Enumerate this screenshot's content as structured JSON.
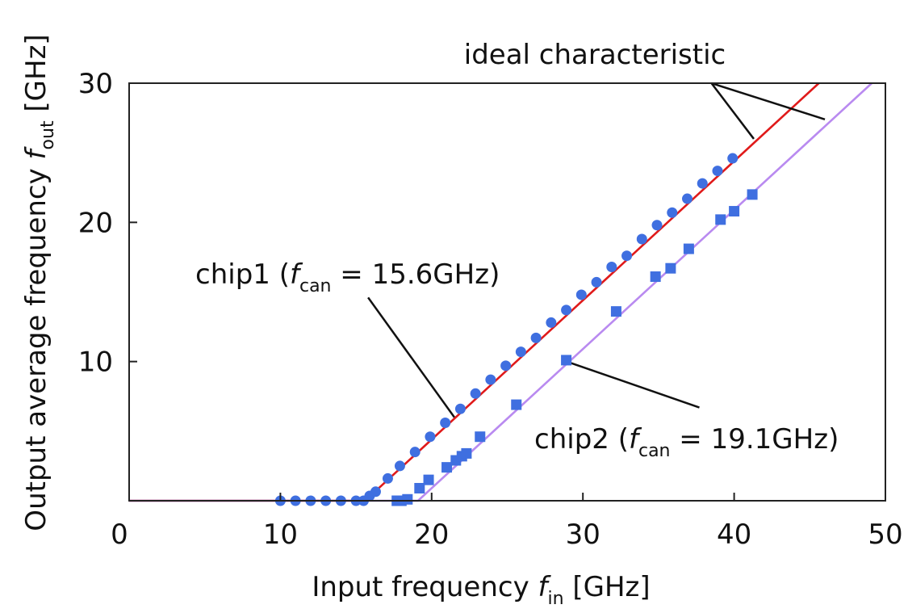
{
  "chart_data": {
    "type": "scatter",
    "title": "",
    "xlabel": {
      "prefix": "Input frequency ",
      "symbol": "f",
      "subscript": "in",
      "suffix": " [GHz]"
    },
    "ylabel": {
      "prefix": "Output average frequency ",
      "symbol": "f",
      "subscript": "out",
      "suffix": " [GHz]"
    },
    "xlim": [
      0,
      50
    ],
    "ylim": [
      0,
      30
    ],
    "xticks": [
      "0",
      "10",
      "20",
      "30",
      "40",
      "50"
    ],
    "yticks": [
      "10",
      "20",
      "30"
    ],
    "grid": false,
    "annotations": {
      "ideal": "ideal characteristic",
      "chip1": {
        "prefix": "chip1 (",
        "symbol": "f",
        "subscript": "can",
        "suffix": " = 15.6GHz)"
      },
      "chip2": {
        "prefix": "chip2 (",
        "symbol": "f",
        "subscript": "can",
        "suffix": " = 19.1GHz)"
      }
    },
    "series": [
      {
        "marker": "circle",
        "color": "#3f6fe0",
        "points": [
          [
            10.0,
            0
          ],
          [
            11.0,
            0
          ],
          [
            12.0,
            0
          ],
          [
            13.0,
            0
          ],
          [
            14.0,
            0
          ],
          [
            15.0,
            0
          ],
          [
            15.5,
            0
          ],
          [
            15.9,
            0.35
          ],
          [
            16.3,
            0.65
          ],
          [
            17.1,
            1.6
          ],
          [
            17.9,
            2.5
          ],
          [
            18.9,
            3.5
          ],
          [
            19.9,
            4.6
          ],
          [
            20.9,
            5.6
          ],
          [
            21.9,
            6.6
          ],
          [
            22.9,
            7.7
          ],
          [
            23.9,
            8.7
          ],
          [
            24.9,
            9.7
          ],
          [
            25.9,
            10.7
          ],
          [
            26.9,
            11.7
          ],
          [
            27.9,
            12.8
          ],
          [
            28.9,
            13.7
          ],
          [
            29.9,
            14.8
          ],
          [
            30.9,
            15.7
          ],
          [
            31.9,
            16.8
          ],
          [
            32.9,
            17.6
          ],
          [
            33.9,
            18.8
          ],
          [
            34.9,
            19.8
          ],
          [
            35.9,
            20.7
          ],
          [
            36.9,
            21.7
          ],
          [
            37.9,
            22.8
          ],
          [
            38.9,
            23.7
          ],
          [
            39.9,
            24.6
          ]
        ]
      },
      {
        "marker": "square",
        "color": "#3f6fe0",
        "points": [
          [
            17.7,
            0
          ],
          [
            18.0,
            0
          ],
          [
            18.4,
            0.1
          ],
          [
            19.2,
            0.9
          ],
          [
            19.8,
            1.5
          ],
          [
            21.0,
            2.4
          ],
          [
            21.6,
            2.9
          ],
          [
            22.0,
            3.2
          ],
          [
            22.3,
            3.4
          ],
          [
            23.2,
            4.6
          ],
          [
            25.6,
            6.9
          ],
          [
            28.9,
            10.1
          ],
          [
            32.2,
            13.6
          ],
          [
            34.8,
            16.1
          ],
          [
            35.8,
            16.7
          ],
          [
            37.0,
            18.1
          ],
          [
            39.1,
            20.2
          ],
          [
            40.0,
            20.8
          ],
          [
            41.2,
            22.0
          ]
        ]
      }
    ],
    "ideal_lines": [
      {
        "fcan": 15.6,
        "color": "#e01a1a"
      },
      {
        "fcan": 19.1,
        "color": "#b98af0"
      }
    ]
  }
}
